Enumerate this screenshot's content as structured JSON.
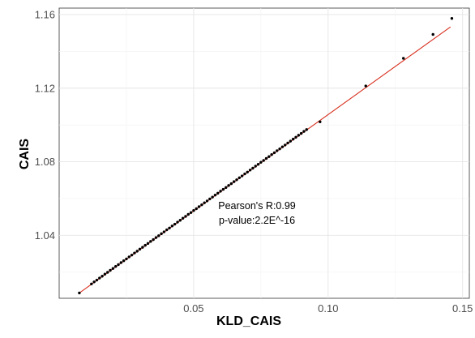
{
  "chart_data": {
    "type": "scatter",
    "xlabel": "KLD_CAIS",
    "ylabel": "CAIS",
    "xlim": [
      0.0,
      0.1525
    ],
    "ylim": [
      1.0058,
      1.1635
    ],
    "x_ticks": [
      0.05,
      0.1,
      0.15
    ],
    "x_tick_labels": [
      "0.05",
      "0.10",
      "0.15"
    ],
    "y_ticks": [
      1.04,
      1.08,
      1.12,
      1.16
    ],
    "y_tick_labels": [
      "1.04",
      "1.08",
      "1.12",
      "1.16"
    ],
    "grid": true,
    "legend": "none",
    "point_color": "#000000",
    "fit_line_color": "#d7301f",
    "fit_line": {
      "x": [
        0.0075,
        0.1455
      ],
      "y": [
        1.0087,
        1.1533
      ]
    },
    "annotations": [
      "Pearson's R:0.99",
      "p-value:2.2E^-16"
    ],
    "series": [
      {
        "x": [
          0.0075,
          0.012,
          0.013,
          0.014,
          0.015,
          0.016,
          0.017,
          0.018,
          0.019,
          0.02,
          0.021,
          0.022,
          0.023,
          0.024,
          0.025,
          0.026,
          0.027,
          0.028,
          0.029,
          0.03,
          0.031,
          0.032,
          0.033,
          0.034,
          0.035,
          0.036,
          0.037,
          0.038,
          0.039,
          0.04,
          0.041,
          0.042,
          0.043,
          0.044,
          0.045,
          0.046,
          0.047,
          0.048,
          0.049,
          0.05,
          0.051,
          0.052,
          0.053,
          0.054,
          0.055,
          0.056,
          0.057,
          0.058,
          0.059,
          0.06,
          0.061,
          0.062,
          0.063,
          0.064,
          0.065,
          0.066,
          0.067,
          0.068,
          0.069,
          0.07,
          0.071,
          0.072,
          0.073,
          0.074,
          0.075,
          0.076,
          0.077,
          0.078,
          0.079,
          0.08,
          0.081,
          0.082,
          0.083,
          0.084,
          0.085,
          0.086,
          0.087,
          0.088,
          0.089,
          0.09,
          0.091,
          0.092,
          0.097,
          0.114,
          0.128,
          0.139,
          0.146
        ],
        "y": [
          1.0087,
          1.0136,
          1.0147,
          1.0157,
          1.0168,
          1.0178,
          1.0189,
          1.0199,
          1.021,
          1.022,
          1.0231,
          1.0241,
          1.0252,
          1.0262,
          1.0272,
          1.0283,
          1.0293,
          1.0304,
          1.0314,
          1.0325,
          1.0335,
          1.0346,
          1.0356,
          1.0367,
          1.0377,
          1.0388,
          1.0398,
          1.0409,
          1.0419,
          1.043,
          1.044,
          1.0451,
          1.0461,
          1.0472,
          1.0482,
          1.0493,
          1.0503,
          1.0514,
          1.0524,
          1.0535,
          1.0545,
          1.0556,
          1.0566,
          1.0577,
          1.0587,
          1.0598,
          1.0608,
          1.0619,
          1.0629,
          1.064,
          1.065,
          1.066,
          1.0671,
          1.0681,
          1.0692,
          1.0702,
          1.0713,
          1.0723,
          1.0734,
          1.0744,
          1.0755,
          1.0765,
          1.0776,
          1.0786,
          1.0797,
          1.0807,
          1.0818,
          1.0828,
          1.0839,
          1.0849,
          1.086,
          1.087,
          1.0881,
          1.0891,
          1.0902,
          1.0912,
          1.0923,
          1.0933,
          1.0944,
          1.0954,
          1.0965,
          1.0975,
          1.1017,
          1.1212,
          1.1362,
          1.1492,
          1.1579
        ]
      }
    ]
  }
}
